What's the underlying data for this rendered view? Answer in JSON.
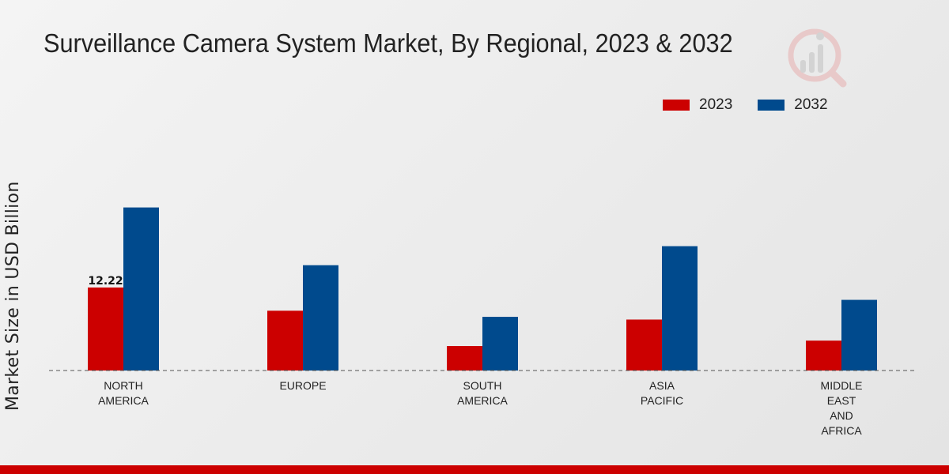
{
  "header": {
    "title": "Surveillance Camera System Market, By Regional, 2023 & 2032"
  },
  "colors": {
    "series_2023": "#cc0000",
    "series_2032": "#004a8d",
    "bottom_bar": "#cc0000"
  },
  "logo": {
    "icon": "market-research-logo-icon"
  },
  "chart_data": {
    "type": "bar",
    "title": "Surveillance Camera System Market, By Regional, 2023 & 2032",
    "xlabel": "",
    "ylabel": "Market Size in USD Billion",
    "categories": [
      [
        "NORTH",
        "AMERICA"
      ],
      [
        "EUROPE"
      ],
      [
        "SOUTH",
        "AMERICA"
      ],
      [
        "ASIA",
        "PACIFIC"
      ],
      [
        "MIDDLE",
        "EAST",
        "AND",
        "AFRICA"
      ]
    ],
    "series": [
      {
        "name": "2023",
        "color": "#cc0000",
        "values": [
          12.22,
          8.8,
          3.6,
          7.5,
          4.4
        ]
      },
      {
        "name": "2032",
        "color": "#004a8d",
        "values": [
          24.0,
          15.5,
          7.9,
          18.3,
          10.4
        ]
      }
    ],
    "data_labels": [
      {
        "series": 0,
        "index": 0,
        "text": "12.22"
      }
    ],
    "ylim": [
      0,
      40
    ],
    "grid": false,
    "legend_position": "top-right",
    "baseline": "dashed"
  }
}
